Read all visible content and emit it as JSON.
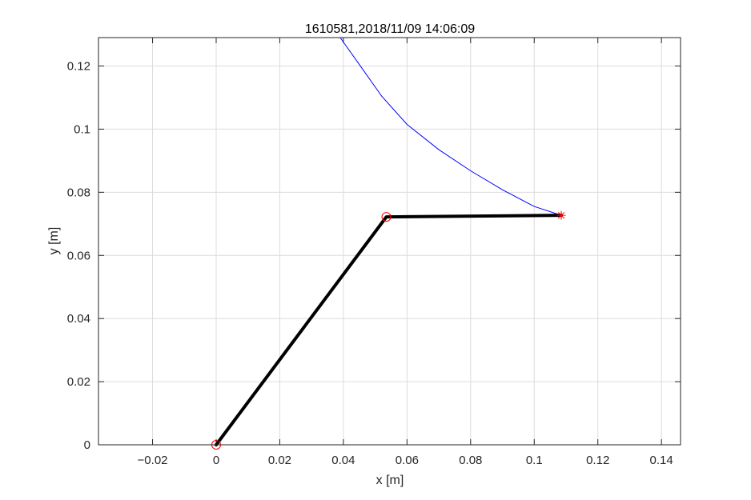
{
  "chart_data": {
    "type": "line",
    "title": "1610581,2018/11/09 14:06:09",
    "xlabel": "x [m]",
    "ylabel": "y [m]",
    "xlim": [
      -0.037,
      0.146
    ],
    "ylim": [
      0,
      0.129
    ],
    "xticks": [
      -0.02,
      0,
      0.02,
      0.04,
      0.06,
      0.08,
      0.1,
      0.12,
      0.14
    ],
    "xtick_labels": [
      "−0.02",
      "0",
      "0.02",
      "0.04",
      "0.06",
      "0.08",
      "0.1",
      "0.12",
      "0.14"
    ],
    "yticks": [
      0,
      0.02,
      0.04,
      0.06,
      0.08,
      0.1,
      0.12
    ],
    "ytick_labels": [
      "0",
      "0.02",
      "0.04",
      "0.06",
      "0.08",
      "0.1",
      "0.12"
    ],
    "grid": true,
    "series": [
      {
        "kind": "trajectory",
        "color": "#0000ff",
        "x": [
          0.039,
          0.045,
          0.052,
          0.06,
          0.07,
          0.08,
          0.09,
          0.1,
          0.1085
        ],
        "y": [
          0.129,
          0.1205,
          0.1105,
          0.1015,
          0.0935,
          0.0868,
          0.0808,
          0.0755,
          0.0727
        ]
      },
      {
        "kind": "arm-links",
        "color": "#000000",
        "x": [
          0,
          0.0535,
          0.1085
        ],
        "y": [
          0,
          0.0722,
          0.0727
        ]
      },
      {
        "kind": "joint-markers",
        "marker": "circle",
        "color": "#ff0000",
        "x": [
          0,
          0.0535
        ],
        "y": [
          0,
          0.0722
        ]
      },
      {
        "kind": "end-effector-marker",
        "marker": "asterisk",
        "color": "#ff0000",
        "x": [
          0.1085
        ],
        "y": [
          0.0727
        ]
      }
    ]
  }
}
